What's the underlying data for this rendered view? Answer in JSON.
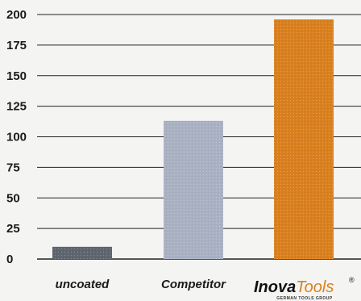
{
  "chart_data": {
    "type": "bar",
    "categories": [
      "uncoated",
      "Competitor",
      "InovaTools"
    ],
    "values": [
      10,
      113,
      196
    ],
    "ylim": [
      0,
      200
    ],
    "yticks": [
      0,
      25,
      50,
      75,
      100,
      125,
      150,
      175,
      200
    ],
    "grid": true,
    "title": "",
    "xlabel": "",
    "ylabel": "",
    "colors": [
      "#5f6670",
      "#a9b1c3",
      "#d9801f"
    ],
    "gridline_color": "#222222"
  },
  "logo": {
    "brand_primary": "Inova",
    "brand_secondary": "Tools",
    "registered_mark": "®",
    "tagline": "GERMAN TOOLS GROUP"
  }
}
